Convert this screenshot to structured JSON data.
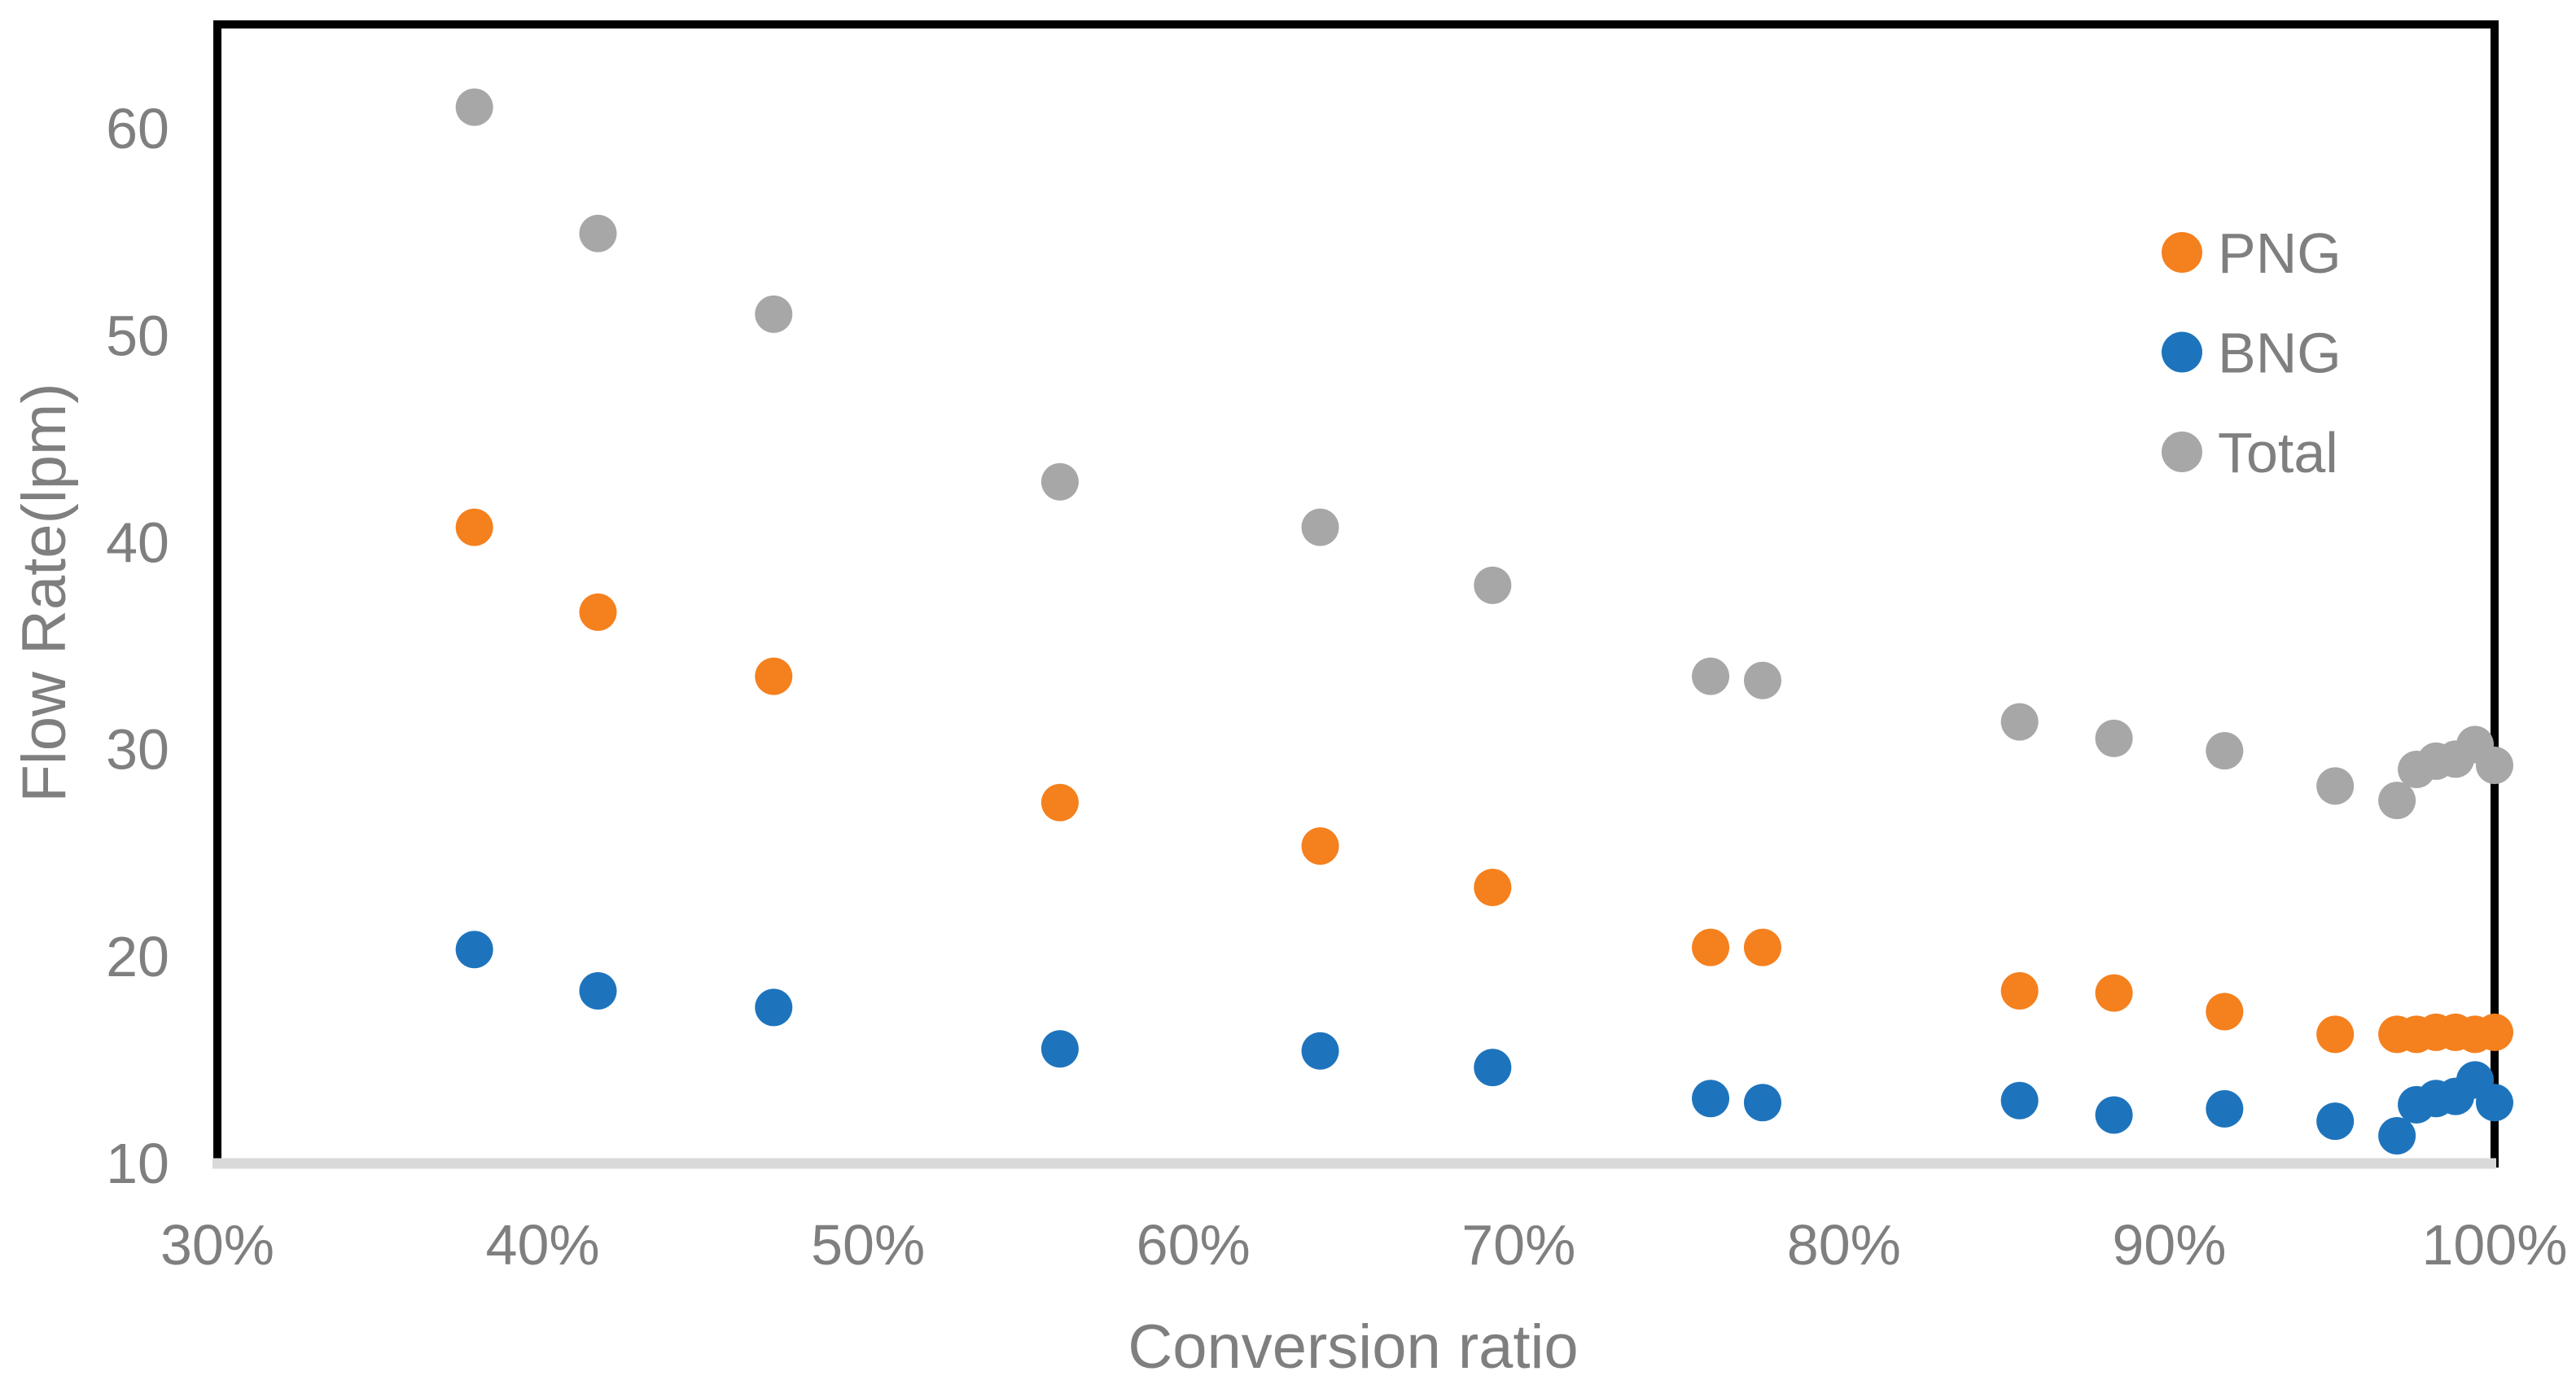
{
  "chart_data": {
    "type": "scatter",
    "title": "",
    "xlabel": "Conversion ratio",
    "ylabel": "Flow Rate(lpm)",
    "xlim_percent": [
      30,
      100
    ],
    "ylim": [
      10,
      65
    ],
    "grid": false,
    "x_axis_format": "percent",
    "legend_position": "inside-upper-right",
    "x_ticks": [
      {
        "value": 30,
        "label": "30%"
      },
      {
        "value": 40,
        "label": "40%"
      },
      {
        "value": 50,
        "label": "50%"
      },
      {
        "value": 60,
        "label": "60%"
      },
      {
        "value": 70,
        "label": "70%"
      },
      {
        "value": 80,
        "label": "80%"
      },
      {
        "value": 90,
        "label": "90%"
      },
      {
        "value": 100,
        "label": "100%"
      }
    ],
    "y_ticks": [
      {
        "value": 10,
        "label": "10"
      },
      {
        "value": 20,
        "label": "20"
      },
      {
        "value": 30,
        "label": "30"
      },
      {
        "value": 40,
        "label": "40"
      },
      {
        "value": 50,
        "label": "50"
      },
      {
        "value": 60,
        "label": "60"
      }
    ],
    "x_percent": [
      37.9,
      41.7,
      47.1,
      55.9,
      63.9,
      69.2,
      75.9,
      77.5,
      85.4,
      88.3,
      91.7,
      95.1,
      97.0,
      97.6,
      98.2,
      98.8,
      99.4,
      100.0
    ],
    "series": [
      {
        "name": "PNG",
        "color": "#F5801E",
        "marker": "circle",
        "values": [
          40.7,
          36.6,
          33.5,
          27.4,
          25.3,
          23.3,
          20.4,
          20.4,
          18.3,
          18.2,
          17.3,
          16.2,
          16.2,
          16.2,
          16.3,
          16.3,
          16.2,
          16.3
        ]
      },
      {
        "name": "BNG",
        "color": "#1E74BC",
        "marker": "circle",
        "values": [
          20.3,
          18.3,
          17.5,
          15.5,
          15.4,
          14.6,
          13.1,
          12.9,
          13.0,
          12.3,
          12.6,
          12.0,
          11.3,
          12.8,
          13.1,
          13.2,
          14.0,
          12.9
        ]
      },
      {
        "name": "Total",
        "color": "#A7A7A7",
        "marker": "circle",
        "values": [
          61.0,
          54.9,
          51.0,
          42.9,
          40.7,
          37.9,
          33.5,
          33.3,
          31.3,
          30.5,
          29.9,
          28.2,
          27.5,
          29.0,
          29.4,
          29.5,
          30.2,
          29.2
        ]
      }
    ],
    "legend_items": [
      "PNG",
      "BNG",
      "Total"
    ]
  },
  "style": {
    "text_color": "#7F7F7F",
    "plot_border_color": "#000000",
    "x_axis_line_color": "#D9D9D9",
    "background": "#FFFFFF"
  }
}
